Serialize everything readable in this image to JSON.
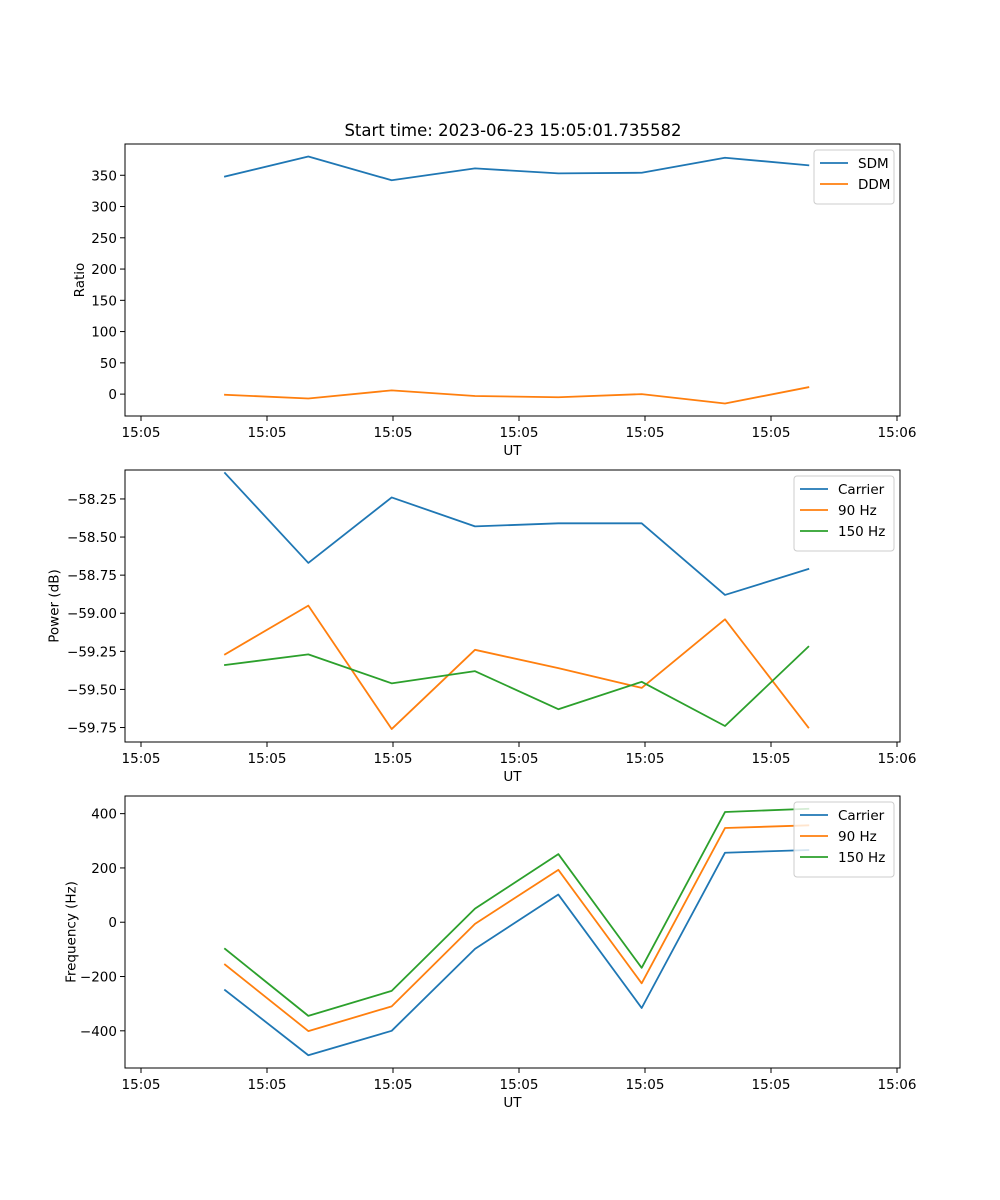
{
  "figure": {
    "title": "Start time: 2023-06-23 15:05:01.735582"
  },
  "chart_data": [
    {
      "type": "line",
      "title": "Start time: 2023-06-23 15:05:01.735582",
      "xlabel": "UT",
      "ylabel": "Ratio",
      "x_tick_labels": [
        "15:05",
        "15:05",
        "15:05",
        "15:05",
        "15:05",
        "15:05",
        "15:06"
      ],
      "x": [
        1,
        2,
        3,
        4,
        5,
        6,
        7,
        8
      ],
      "xlim": [
        -0.2,
        9.1
      ],
      "ylim": [
        -35,
        400
      ],
      "y_ticks": [
        0,
        50,
        100,
        150,
        200,
        250,
        300,
        350
      ],
      "grid": false,
      "legend_position": "top-right",
      "series": [
        {
          "name": "SDM",
          "color": "#1f77b4",
          "values": [
            348,
            380,
            342,
            361,
            353,
            354,
            378,
            366
          ]
        },
        {
          "name": "DDM",
          "color": "#ff7f0e",
          "values": [
            -1,
            -7,
            6,
            -3,
            -5,
            0,
            -15,
            11
          ]
        }
      ]
    },
    {
      "type": "line",
      "title": "",
      "xlabel": "UT",
      "ylabel": "Power (dB)",
      "x_tick_labels": [
        "15:05",
        "15:05",
        "15:05",
        "15:05",
        "15:05",
        "15:05",
        "15:06"
      ],
      "x": [
        1,
        2,
        3,
        4,
        5,
        6,
        7,
        8
      ],
      "xlim": [
        -0.2,
        9.1
      ],
      "ylim": [
        -59.845,
        -58.06
      ],
      "y_ticks": [
        -59.75,
        -59.5,
        -59.25,
        -59.0,
        -58.75,
        -58.5,
        -58.25
      ],
      "y_tick_labels": [
        "−59.75",
        "−59.50",
        "−59.25",
        "−59.00",
        "−58.75",
        "−58.50",
        "−58.25"
      ],
      "grid": false,
      "legend_position": "top-right",
      "series": [
        {
          "name": "Carrier",
          "color": "#1f77b4",
          "values": [
            -58.08,
            -58.67,
            -58.24,
            -58.43,
            -58.41,
            -58.41,
            -58.88,
            -58.71
          ]
        },
        {
          "name": "90 Hz",
          "color": "#ff7f0e",
          "values": [
            -59.27,
            -58.95,
            -59.76,
            -59.24,
            -59.36,
            -59.49,
            -59.04,
            -59.75
          ]
        },
        {
          "name": "150 Hz",
          "color": "#2ca02c",
          "values": [
            -59.34,
            -59.27,
            -59.46,
            -59.38,
            -59.63,
            -59.45,
            -59.74,
            -59.22
          ]
        }
      ]
    },
    {
      "type": "line",
      "title": "",
      "xlabel": "UT",
      "ylabel": "Frequency (Hz)",
      "x_tick_labels": [
        "15:05",
        "15:05",
        "15:05",
        "15:05",
        "15:05",
        "15:05",
        "15:06"
      ],
      "x": [
        1,
        2,
        3,
        4,
        5,
        6,
        7,
        8
      ],
      "xlim": [
        -0.2,
        9.1
      ],
      "ylim": [
        -537,
        465
      ],
      "y_ticks": [
        -400,
        -200,
        0,
        200,
        400
      ],
      "y_tick_labels": [
        "−400",
        "−200",
        "0",
        "200",
        "400"
      ],
      "grid": false,
      "legend_position": "top-right",
      "series": [
        {
          "name": "Carrier",
          "color": "#1f77b4",
          "values": [
            -250,
            -490,
            -400,
            -98,
            102,
            -316,
            256,
            266
          ]
        },
        {
          "name": "90 Hz",
          "color": "#ff7f0e",
          "values": [
            -156,
            -401,
            -310,
            -6,
            193,
            -225,
            347,
            357
          ]
        },
        {
          "name": "150 Hz",
          "color": "#2ca02c",
          "values": [
            -98,
            -345,
            -253,
            50,
            251,
            -168,
            406,
            418
          ]
        }
      ]
    }
  ]
}
